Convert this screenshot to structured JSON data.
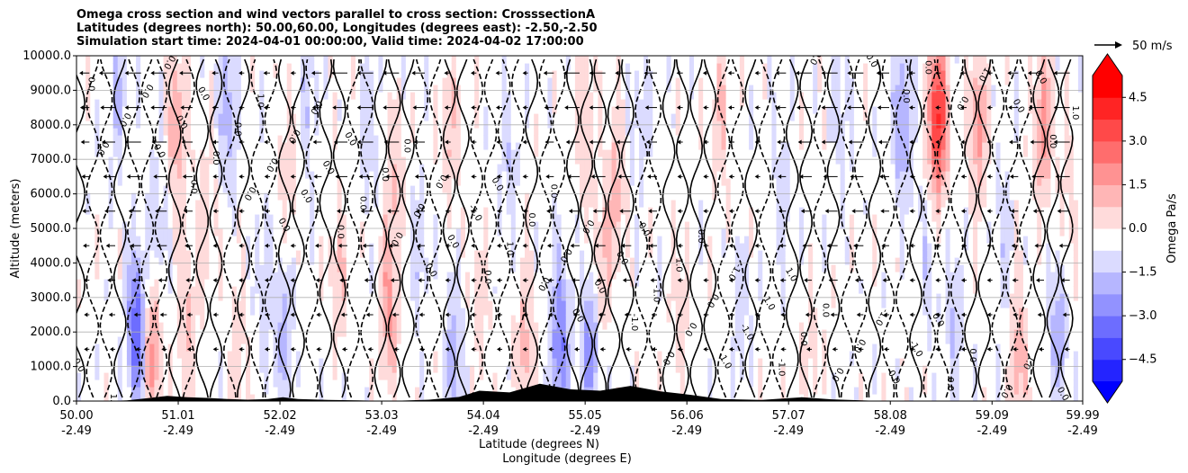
{
  "chart_data": {
    "type": "heatmap",
    "title_lines": [
      "Omega cross section and wind vectors parallel to cross section: CrosssectionA",
      "Latitudes (degrees north): 50.00,60.00, Longitudes (degrees east): -2.50,-2.50",
      "Simulation start time: 2024-04-01 00:00:00, Valid time: 2024-04-02 17:00:00"
    ],
    "ylabel": "Altitude (meters)",
    "xlabel": "Latitude (degrees N)",
    "xlabel2": "Longitude (degrees E)",
    "ylim": [
      0,
      10000
    ],
    "y_ticks": [
      0,
      1000,
      2000,
      3000,
      4000,
      5000,
      6000,
      7000,
      8000,
      9000,
      10000
    ],
    "y_tick_labels": [
      "0.0",
      "1000.0",
      "2000.0",
      "3000.0",
      "4000.0",
      "5000.0",
      "6000.0",
      "7000.0",
      "8000.0",
      "9000.0",
      "10000.0"
    ],
    "xlim": [
      50.0,
      59.99
    ],
    "x_ticks": [
      50.0,
      51.01,
      52.02,
      53.03,
      54.04,
      55.05,
      56.06,
      57.07,
      58.08,
      59.09,
      59.99
    ],
    "x_tick_labels": [
      "50.00",
      "51.01",
      "52.02",
      "53.03",
      "54.04",
      "55.05",
      "56.06",
      "57.07",
      "58.08",
      "59.09",
      "59.99"
    ],
    "x_tick_labels_lon": [
      "-2.49",
      "-2.49",
      "-2.49",
      "-2.49",
      "-2.49",
      "-2.49",
      "-2.49",
      "-2.49",
      "-2.49",
      "-2.49",
      "-2.49"
    ],
    "grid": "horizontal",
    "colorbar": {
      "label": "Omega Pa/s",
      "range": [
        -5.25,
        5.25
      ],
      "extend": "both",
      "ticks": [
        -4.5,
        -3.0,
        -1.5,
        0.0,
        1.5,
        3.0,
        4.5
      ],
      "tick_labels": [
        "−4.5",
        "−3.0",
        "−1.5",
        "0.0",
        "1.5",
        "3.0",
        "4.5"
      ],
      "cmap": "bwr",
      "low_color": "#0000ff",
      "high_color": "#ff0000"
    },
    "quiver_key": {
      "label": "50 m/s",
      "value": 50
    },
    "contour_levels": [
      -1.0,
      0.0,
      1.0
    ],
    "contour_labels": [
      "0.0",
      "0.0",
      "0.0",
      "0.0",
      "0.0",
      "0.0",
      "1.0",
      "0.0",
      "1.0",
      "0.0",
      "1.0",
      "-1.0",
      "0.0",
      "1.0",
      "-1.0",
      "0.0",
      "0.0",
      "0.0",
      "0.0",
      "0.0",
      "0.0",
      "0.0",
      "1.0",
      "0.0",
      "-1.0",
      "0.0",
      "0.0",
      "1.0",
      "0.0",
      "0.0",
      "0.0",
      "0.0",
      "0.0",
      "-1.0",
      "0.0",
      "0.0",
      "0.0",
      "0.0",
      "0.0",
      "0.0",
      "0.0",
      "0.0",
      "0.0",
      "-1.0",
      "0.0",
      "0.0",
      "1.0",
      "0.0",
      "-1.0",
      "0.0",
      "1.0",
      "0.0",
      "0.0",
      "0.0",
      "0.0",
      "1.0",
      "0.0",
      "0.0",
      "0.0",
      "0.0",
      "0.0",
      "-1.0",
      "0.0",
      "0.0",
      "-1.0",
      "0.0",
      "0.0",
      "0.0",
      "0.0",
      "-1.0",
      "0.0",
      "0.0",
      "0.0",
      "0.0",
      "0.0",
      "0.0",
      "0.0",
      "0.0",
      "0.0",
      "0.0"
    ],
    "terrain": [
      [
        50.0,
        0
      ],
      [
        50.3,
        0
      ],
      [
        50.5,
        20
      ],
      [
        50.7,
        80
      ],
      [
        50.9,
        150
      ],
      [
        51.1,
        110
      ],
      [
        51.3,
        90
      ],
      [
        51.5,
        60
      ],
      [
        51.7,
        40
      ],
      [
        51.9,
        60
      ],
      [
        52.05,
        110
      ],
      [
        52.2,
        60
      ],
      [
        52.5,
        30
      ],
      [
        52.8,
        20
      ],
      [
        53.1,
        0
      ],
      [
        53.5,
        40
      ],
      [
        53.8,
        120
      ],
      [
        54.0,
        300
      ],
      [
        54.3,
        250
      ],
      [
        54.6,
        500
      ],
      [
        54.9,
        340
      ],
      [
        55.2,
        300
      ],
      [
        55.5,
        440
      ],
      [
        55.8,
        280
      ],
      [
        56.1,
        180
      ],
      [
        56.4,
        60
      ],
      [
        56.8,
        30
      ],
      [
        57.2,
        110
      ],
      [
        57.5,
        50
      ],
      [
        58.0,
        0
      ],
      [
        59.99,
        0
      ]
    ],
    "omega_features": [
      [
        50.4,
        9000,
        -1.2
      ],
      [
        50.6,
        2100,
        -3.6
      ],
      [
        50.75,
        1700,
        2.4
      ],
      [
        50.8,
        4800,
        -1.2
      ],
      [
        51.0,
        7900,
        1.8
      ],
      [
        51.1,
        2300,
        1.3
      ],
      [
        51.3,
        5200,
        0.9
      ],
      [
        51.5,
        8400,
        -1.6
      ],
      [
        51.6,
        1200,
        0.9
      ],
      [
        51.85,
        3300,
        -0.8
      ],
      [
        52.05,
        2100,
        -1.5
      ],
      [
        52.1,
        6700,
        1.0
      ],
      [
        52.3,
        8600,
        -1.0
      ],
      [
        52.6,
        3600,
        1.1
      ],
      [
        52.9,
        7800,
        -0.9
      ],
      [
        53.1,
        2700,
        2.0
      ],
      [
        53.15,
        6200,
        1.0
      ],
      [
        53.4,
        4200,
        -0.9
      ],
      [
        53.7,
        7900,
        1.2
      ],
      [
        53.75,
        1000,
        -1.8
      ],
      [
        54.0,
        3200,
        0.8
      ],
      [
        54.3,
        6700,
        -0.9
      ],
      [
        54.45,
        1500,
        1.4
      ],
      [
        54.8,
        1800,
        -2.8
      ],
      [
        55.05,
        8100,
        1.1
      ],
      [
        55.1,
        1600,
        -2.4
      ],
      [
        55.2,
        3700,
        1.3
      ],
      [
        55.35,
        5900,
        1.5
      ],
      [
        55.6,
        7800,
        -0.8
      ],
      [
        56.0,
        3000,
        0.9
      ],
      [
        56.4,
        8400,
        1.1
      ],
      [
        56.6,
        2200,
        -0.8
      ],
      [
        57.0,
        6200,
        -0.7
      ],
      [
        57.3,
        1400,
        0.7
      ],
      [
        57.6,
        8100,
        -0.8
      ],
      [
        58.2,
        8100,
        -2.0
      ],
      [
        58.45,
        4000,
        -0.8
      ],
      [
        58.55,
        8200,
        4.6
      ],
      [
        58.7,
        2500,
        -1.1
      ],
      [
        58.95,
        7900,
        2.0
      ],
      [
        59.2,
        4600,
        -0.8
      ],
      [
        59.35,
        1200,
        1.6
      ],
      [
        59.6,
        8000,
        2.2
      ],
      [
        59.75,
        2200,
        -1.6
      ],
      [
        59.85,
        5600,
        0.8
      ]
    ]
  }
}
